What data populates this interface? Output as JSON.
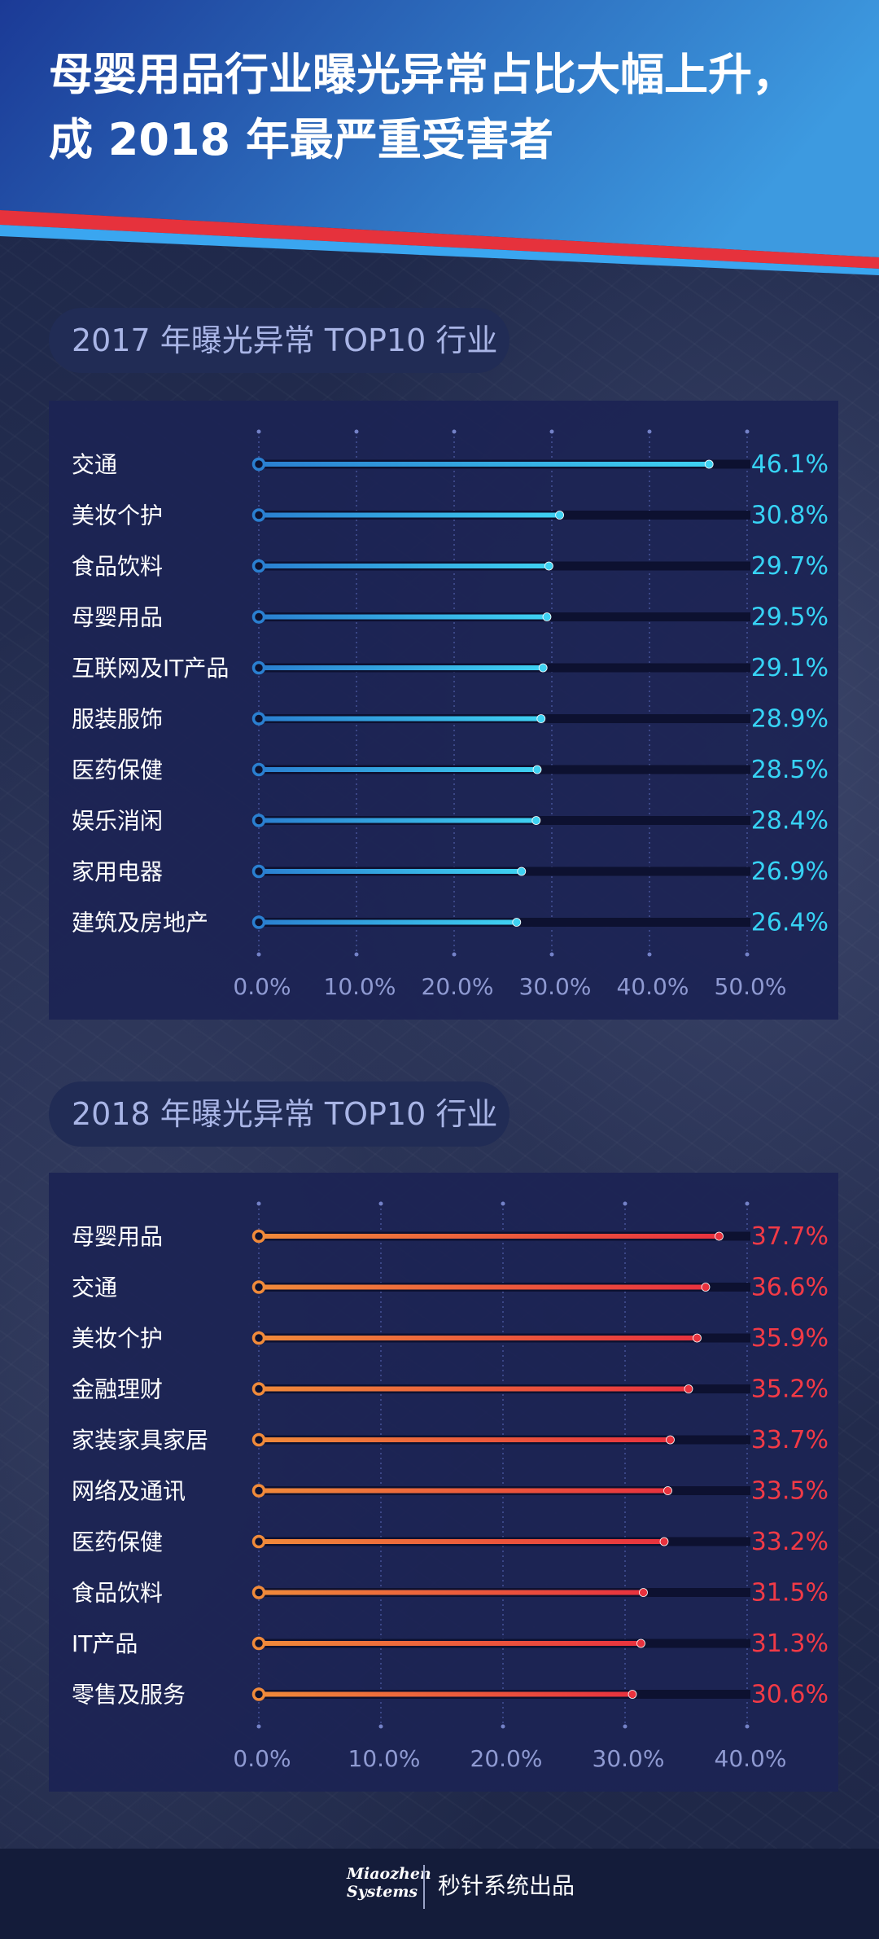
{
  "title": {
    "line1": "母婴用品行业曝光异常占比大幅上升，",
    "line2": "成 2018 年最严重受害者"
  },
  "colors": {
    "header_blue_dark": "#1c3e9a",
    "header_blue_light": "#3a93db",
    "stripe_red": "#e6323c",
    "stripe_blue": "#3aa6f0",
    "panel_bg": "#1c2454",
    "cyan_value": "#37d3f5",
    "red_value": "#f23a46"
  },
  "sections": [
    {
      "label": "2017 年曝光异常 TOP10 行业"
    },
    {
      "label": "2018 年曝光异常 TOP10 行业"
    }
  ],
  "chart_data": [
    {
      "type": "bar",
      "title": "2017 年曝光异常 TOP10 行业",
      "categories": [
        "交通",
        "美妆个护",
        "食品饮料",
        "母婴用品",
        "互联网及IT产品",
        "服装服饰",
        "医药保健",
        "娱乐消闲",
        "家用电器",
        "建筑及房地产"
      ],
      "values": [
        46.1,
        30.8,
        29.7,
        29.5,
        29.1,
        28.9,
        28.5,
        28.4,
        26.9,
        26.4
      ],
      "value_labels": [
        "46.1%",
        "30.8%",
        "29.7%",
        "29.5%",
        "29.1%",
        "28.9%",
        "28.5%",
        "28.4%",
        "26.9%",
        "26.4%"
      ],
      "xlim": [
        0,
        50
      ],
      "xticks": [
        "0.0%",
        "10.0%",
        "20.0%",
        "30.0%",
        "40.0%",
        "50.0%"
      ],
      "grid": true,
      "value_color": "#37d3f5",
      "bar_gradient": [
        "#2a7fd0",
        "#3fd2f2"
      ]
    },
    {
      "type": "bar",
      "title": "2018 年曝光异常 TOP10 行业",
      "categories": [
        "母婴用品",
        "交通",
        "美妆个护",
        "金融理财",
        "家装家具家居",
        "网络及通讯",
        "医药保健",
        "食品饮料",
        "IT产品",
        "零售及服务"
      ],
      "values": [
        37.7,
        36.6,
        35.9,
        35.2,
        33.7,
        33.5,
        33.2,
        31.5,
        31.3,
        30.6
      ],
      "value_labels": [
        "37.7%",
        "36.6%",
        "35.9%",
        "35.2%",
        "33.7%",
        "33.5%",
        "33.2%",
        "31.5%",
        "31.3%",
        "30.6%"
      ],
      "xlim": [
        0,
        40
      ],
      "xticks": [
        "0.0%",
        "10.0%",
        "20.0%",
        "30.0%",
        "40.0%"
      ],
      "grid": true,
      "value_color": "#f23a46",
      "bar_gradient": [
        "#f08a3a",
        "#e8323e"
      ]
    }
  ],
  "footer": {
    "logo_line1": "Miaozhen",
    "logo_line2": "Systems",
    "text": "秒针系统出品"
  }
}
